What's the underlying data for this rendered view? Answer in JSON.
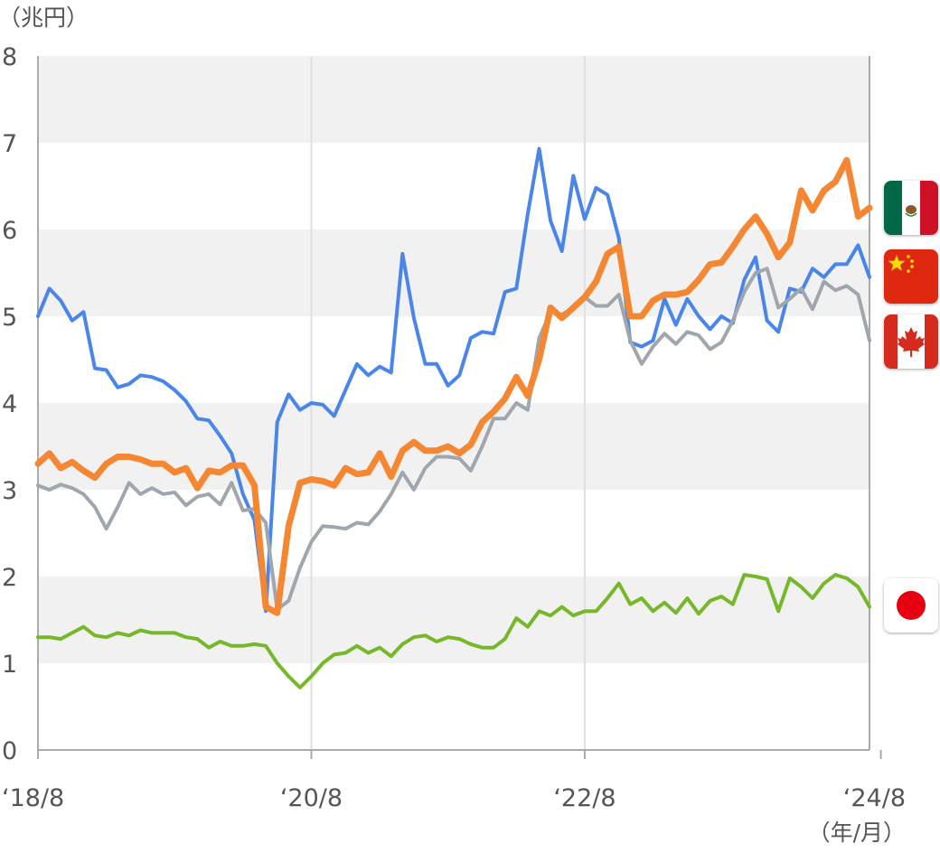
{
  "chart_data": {
    "type": "line",
    "ylabel": "（兆円）",
    "xlabel": "（年/月）",
    "ylim": [
      0,
      8
    ],
    "yticks": [
      "0",
      "1",
      "2",
      "3",
      "4",
      "5",
      "6",
      "7",
      "8"
    ],
    "xticks": [
      {
        "label": "‘18/8",
        "index": 0
      },
      {
        "label": "‘20/8",
        "index": 24
      },
      {
        "label": "‘22/8",
        "index": 48
      },
      {
        "label": "‘24/8",
        "index": 74
      }
    ],
    "grid": "alternating horizontal bands",
    "legend": "right (flag icons)",
    "colors": {
      "mexico": "#F58733",
      "china": "#4A86E8",
      "canada": "#A0A6AD",
      "japan": "#76B82A"
    },
    "series": [
      {
        "country": "china",
        "flag": "china-flag",
        "values": [
          5.0,
          5.32,
          5.18,
          4.95,
          5.05,
          4.4,
          4.38,
          4.18,
          4.22,
          4.32,
          4.3,
          4.25,
          4.15,
          4.02,
          3.82,
          3.8,
          3.62,
          3.42,
          2.95,
          2.65,
          1.6,
          3.78,
          4.1,
          3.92,
          4.0,
          3.98,
          3.85,
          4.15,
          4.45,
          4.32,
          4.42,
          4.35,
          5.72,
          4.98,
          4.45,
          4.45,
          4.2,
          4.32,
          4.75,
          4.82,
          4.8,
          5.28,
          5.32,
          6.18,
          6.93,
          6.1,
          5.75,
          6.62,
          6.12,
          6.48,
          6.4,
          5.9,
          4.7,
          4.65,
          4.72,
          5.2,
          4.9,
          5.2,
          5.0,
          4.85,
          5.0,
          4.92,
          5.42,
          5.68,
          4.95,
          4.82,
          5.32,
          5.28,
          5.55,
          5.45,
          5.6,
          5.6,
          5.82,
          5.45
        ]
      },
      {
        "country": "canada",
        "flag": "canada-flag",
        "values": [
          3.05,
          3.0,
          3.06,
          3.02,
          2.95,
          2.8,
          2.55,
          2.8,
          3.08,
          2.95,
          3.02,
          2.95,
          2.97,
          2.82,
          2.92,
          2.95,
          2.83,
          3.08,
          2.76,
          2.78,
          2.62,
          1.62,
          1.72,
          2.1,
          2.4,
          2.58,
          2.57,
          2.55,
          2.62,
          2.6,
          2.75,
          2.95,
          3.2,
          3.0,
          3.25,
          3.38,
          3.38,
          3.36,
          3.22,
          3.5,
          3.82,
          3.82,
          4.0,
          3.92,
          4.75,
          5.05,
          5.02,
          5.1,
          5.22,
          5.12,
          5.12,
          5.25,
          4.72,
          4.45,
          4.65,
          4.8,
          4.68,
          4.82,
          4.78,
          4.62,
          4.7,
          4.95,
          5.28,
          5.5,
          5.55,
          5.1,
          5.2,
          5.32,
          5.08,
          5.4,
          5.3,
          5.35,
          5.25,
          4.72
        ]
      },
      {
        "country": "mexico",
        "flag": "mexico-flag",
        "values": [
          3.3,
          3.42,
          3.25,
          3.32,
          3.22,
          3.14,
          3.3,
          3.38,
          3.38,
          3.35,
          3.3,
          3.3,
          3.2,
          3.25,
          3.02,
          3.22,
          3.2,
          3.28,
          3.28,
          3.05,
          1.65,
          1.58,
          2.58,
          3.08,
          3.12,
          3.1,
          3.05,
          3.25,
          3.18,
          3.2,
          3.42,
          3.15,
          3.45,
          3.55,
          3.45,
          3.45,
          3.5,
          3.42,
          3.52,
          3.78,
          3.9,
          4.05,
          4.3,
          4.08,
          4.5,
          5.1,
          4.98,
          5.1,
          5.22,
          5.4,
          5.72,
          5.8,
          5.0,
          5.0,
          5.18,
          5.25,
          5.25,
          5.28,
          5.42,
          5.6,
          5.62,
          5.8,
          6.0,
          6.15,
          5.95,
          5.68,
          5.85,
          6.45,
          6.22,
          6.45,
          6.55,
          6.8,
          6.15,
          6.25
        ]
      },
      {
        "country": "japan",
        "flag": "japan-flag",
        "values": [
          1.3,
          1.3,
          1.28,
          1.35,
          1.42,
          1.32,
          1.3,
          1.35,
          1.32,
          1.38,
          1.35,
          1.35,
          1.35,
          1.3,
          1.28,
          1.18,
          1.25,
          1.2,
          1.2,
          1.22,
          1.2,
          1.0,
          0.85,
          0.72,
          0.85,
          1.0,
          1.1,
          1.12,
          1.2,
          1.12,
          1.18,
          1.08,
          1.22,
          1.3,
          1.32,
          1.25,
          1.3,
          1.28,
          1.22,
          1.18,
          1.18,
          1.28,
          1.52,
          1.42,
          1.6,
          1.55,
          1.65,
          1.55,
          1.6,
          1.6,
          1.75,
          1.92,
          1.68,
          1.75,
          1.6,
          1.7,
          1.58,
          1.75,
          1.57,
          1.72,
          1.77,
          1.68,
          2.02,
          2.0,
          1.97,
          1.6,
          1.98,
          1.88,
          1.75,
          1.92,
          2.02,
          1.98,
          1.88,
          1.65
        ]
      }
    ]
  },
  "legend": {
    "flags": [
      "mexico-flag",
      "china-flag",
      "canada-flag",
      "japan-flag"
    ]
  }
}
